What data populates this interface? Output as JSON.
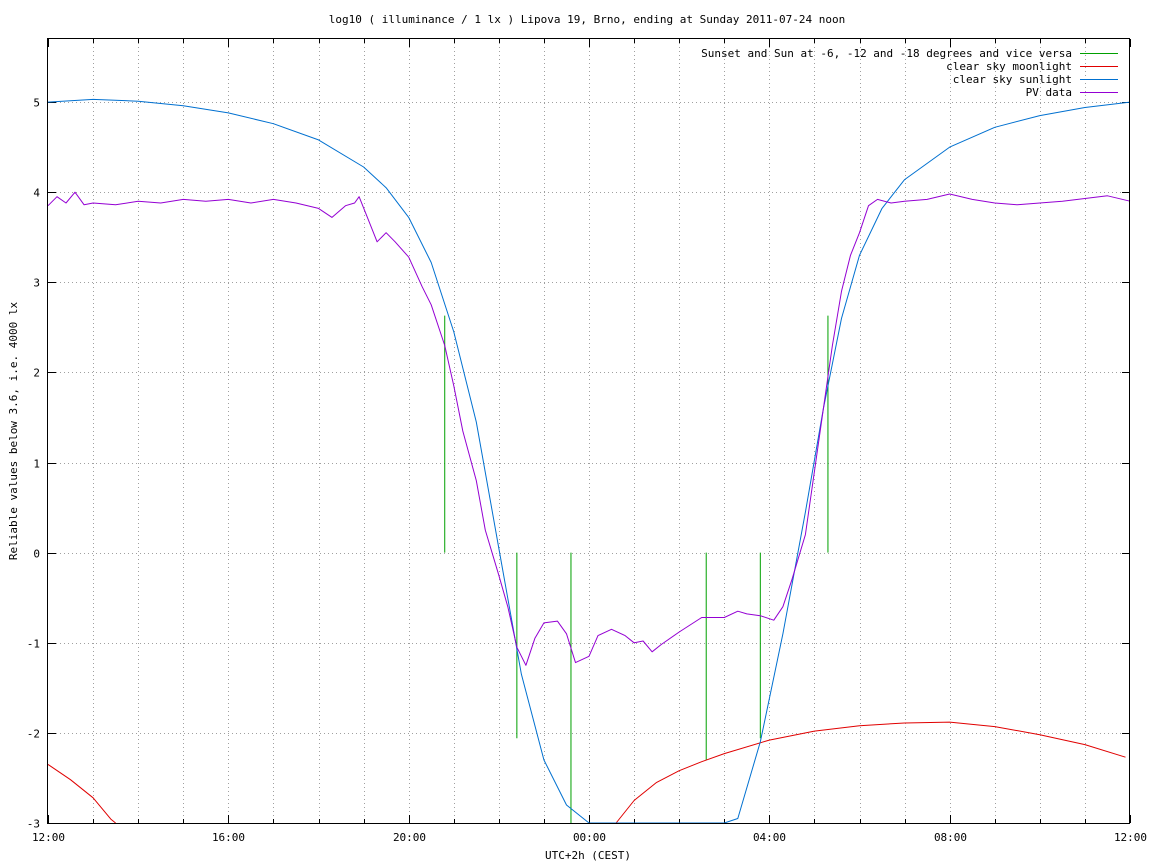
{
  "chart_data": {
    "type": "line",
    "title": "log10 ( illuminance / 1 lx ) Lipova 19, Brno, ending at Sunday 2011-07-24 noon",
    "xlabel": "UTC+2h (CEST)",
    "ylabel": "Reliable values below 3.6, i.e. 4000 lx",
    "x_unit": "hours since Saturday 2011-07-23 12:00 (CEST)",
    "xlim": [
      0,
      24
    ],
    "ylim": [
      -3,
      5.7
    ],
    "grid": true,
    "legend_position": "top-right",
    "x_ticks": [
      {
        "x": 0,
        "label": "12:00"
      },
      {
        "x": 4,
        "label": "16:00"
      },
      {
        "x": 8,
        "label": "20:00"
      },
      {
        "x": 12,
        "label": "00:00"
      },
      {
        "x": 16,
        "label": "04:00"
      },
      {
        "x": 20,
        "label": "08:00"
      },
      {
        "x": 24,
        "label": "12:00"
      }
    ],
    "y_ticks": [
      {
        "y": 5,
        "label": "5"
      },
      {
        "y": 4,
        "label": "4"
      },
      {
        "y": 3,
        "label": "3"
      },
      {
        "y": 2,
        "label": "2"
      },
      {
        "y": 1,
        "label": "1"
      },
      {
        "y": 0,
        "label": "0"
      },
      {
        "y": -1,
        "label": "-1"
      },
      {
        "y": -2,
        "label": "-2"
      },
      {
        "y": -3,
        "label": "-3"
      }
    ],
    "series": [
      {
        "name": "Sunset and Sun at -6, -12 and -18 degrees and vice versa",
        "color": "#00a000",
        "style": "impulse",
        "points": [
          [
            8.8,
            2.63
          ],
          [
            10.4,
            -2.06
          ],
          [
            11.6,
            -3.0
          ],
          [
            14.6,
            -2.3
          ],
          [
            15.8,
            -2.06
          ],
          [
            17.3,
            2.63
          ]
        ]
      },
      {
        "name": "clear sky moonlight",
        "color": "#e00000",
        "style": "line",
        "segments": [
          [
            [
              0.0,
              -2.35
            ],
            [
              0.5,
              -2.52
            ],
            [
              1.0,
              -2.72
            ],
            [
              1.4,
              -2.96
            ],
            [
              1.5,
              -3.0
            ]
          ],
          [
            [
              12.6,
              -3.0
            ],
            [
              13.0,
              -2.75
            ],
            [
              13.5,
              -2.55
            ],
            [
              14.0,
              -2.42
            ],
            [
              14.5,
              -2.32
            ],
            [
              15.0,
              -2.23
            ],
            [
              16.0,
              -2.08
            ],
            [
              17.0,
              -1.98
            ],
            [
              18.0,
              -1.92
            ],
            [
              19.0,
              -1.89
            ],
            [
              20.0,
              -1.88
            ],
            [
              21.0,
              -1.93
            ],
            [
              22.0,
              -2.02
            ],
            [
              23.0,
              -2.13
            ],
            [
              23.9,
              -2.27
            ]
          ]
        ]
      },
      {
        "name": "clear sky sunlight",
        "color": "#0070d0",
        "style": "line",
        "points": [
          [
            0.0,
            5.0
          ],
          [
            1.0,
            5.03
          ],
          [
            2.0,
            5.01
          ],
          [
            3.0,
            4.96
          ],
          [
            4.0,
            4.88
          ],
          [
            5.0,
            4.76
          ],
          [
            6.0,
            4.58
          ],
          [
            7.0,
            4.28
          ],
          [
            7.5,
            4.05
          ],
          [
            8.0,
            3.72
          ],
          [
            8.5,
            3.22
          ],
          [
            9.0,
            2.45
          ],
          [
            9.5,
            1.45
          ],
          [
            10.0,
            0.05
          ],
          [
            10.5,
            -1.35
          ],
          [
            11.0,
            -2.3
          ],
          [
            11.5,
            -2.8
          ],
          [
            12.0,
            -3.1
          ],
          [
            12.3,
            -3.2
          ],
          [
            15.0,
            -3.2
          ],
          [
            15.3,
            -2.95
          ],
          [
            15.8,
            -2.1
          ],
          [
            16.3,
            -0.9
          ],
          [
            16.8,
            0.45
          ],
          [
            17.2,
            1.6
          ],
          [
            17.6,
            2.6
          ],
          [
            18.0,
            3.3
          ],
          [
            18.5,
            3.82
          ],
          [
            19.0,
            4.14
          ],
          [
            20.0,
            4.5
          ],
          [
            21.0,
            4.72
          ],
          [
            22.0,
            4.85
          ],
          [
            23.0,
            4.94
          ],
          [
            24.0,
            5.0
          ]
        ]
      },
      {
        "name": "PV data",
        "color": "#9400d3",
        "style": "line",
        "points": [
          [
            0.0,
            3.85
          ],
          [
            0.2,
            3.95
          ],
          [
            0.4,
            3.88
          ],
          [
            0.6,
            4.0
          ],
          [
            0.8,
            3.86
          ],
          [
            1.0,
            3.88
          ],
          [
            1.5,
            3.86
          ],
          [
            2.0,
            3.9
          ],
          [
            2.5,
            3.88
          ],
          [
            3.0,
            3.92
          ],
          [
            3.5,
            3.9
          ],
          [
            4.0,
            3.92
          ],
          [
            4.5,
            3.88
          ],
          [
            5.0,
            3.92
          ],
          [
            5.5,
            3.88
          ],
          [
            6.0,
            3.82
          ],
          [
            6.3,
            3.72
          ],
          [
            6.6,
            3.85
          ],
          [
            6.8,
            3.88
          ],
          [
            6.9,
            3.95
          ],
          [
            7.1,
            3.7
          ],
          [
            7.3,
            3.45
          ],
          [
            7.5,
            3.55
          ],
          [
            7.7,
            3.45
          ],
          [
            8.0,
            3.28
          ],
          [
            8.3,
            2.95
          ],
          [
            8.5,
            2.75
          ],
          [
            8.8,
            2.3
          ],
          [
            9.0,
            1.85
          ],
          [
            9.2,
            1.35
          ],
          [
            9.5,
            0.8
          ],
          [
            9.7,
            0.25
          ],
          [
            10.0,
            -0.25
          ],
          [
            10.2,
            -0.6
          ],
          [
            10.4,
            -1.05
          ],
          [
            10.6,
            -1.25
          ],
          [
            10.8,
            -0.95
          ],
          [
            11.0,
            -0.78
          ],
          [
            11.3,
            -0.76
          ],
          [
            11.5,
            -0.9
          ],
          [
            11.7,
            -1.22
          ],
          [
            12.0,
            -1.15
          ],
          [
            12.2,
            -0.92
          ],
          [
            12.5,
            -0.85
          ],
          [
            12.8,
            -0.92
          ],
          [
            13.0,
            -1.0
          ],
          [
            13.2,
            -0.98
          ],
          [
            13.4,
            -1.1
          ],
          [
            13.6,
            -1.02
          ],
          [
            14.0,
            -0.88
          ],
          [
            14.5,
            -0.72
          ],
          [
            15.0,
            -0.72
          ],
          [
            15.3,
            -0.65
          ],
          [
            15.5,
            -0.68
          ],
          [
            15.8,
            -0.7
          ],
          [
            16.1,
            -0.75
          ],
          [
            16.3,
            -0.6
          ],
          [
            16.5,
            -0.3
          ],
          [
            16.8,
            0.2
          ],
          [
            17.0,
            0.9
          ],
          [
            17.2,
            1.6
          ],
          [
            17.4,
            2.3
          ],
          [
            17.6,
            2.9
          ],
          [
            17.8,
            3.3
          ],
          [
            18.0,
            3.55
          ],
          [
            18.2,
            3.85
          ],
          [
            18.4,
            3.92
          ],
          [
            18.7,
            3.88
          ],
          [
            19.0,
            3.9
          ],
          [
            19.5,
            3.92
          ],
          [
            20.0,
            3.98
          ],
          [
            20.5,
            3.92
          ],
          [
            21.0,
            3.88
          ],
          [
            21.5,
            3.86
          ],
          [
            22.0,
            3.88
          ],
          [
            22.5,
            3.9
          ],
          [
            23.0,
            3.93
          ],
          [
            23.5,
            3.96
          ],
          [
            24.0,
            3.9
          ]
        ]
      }
    ]
  }
}
